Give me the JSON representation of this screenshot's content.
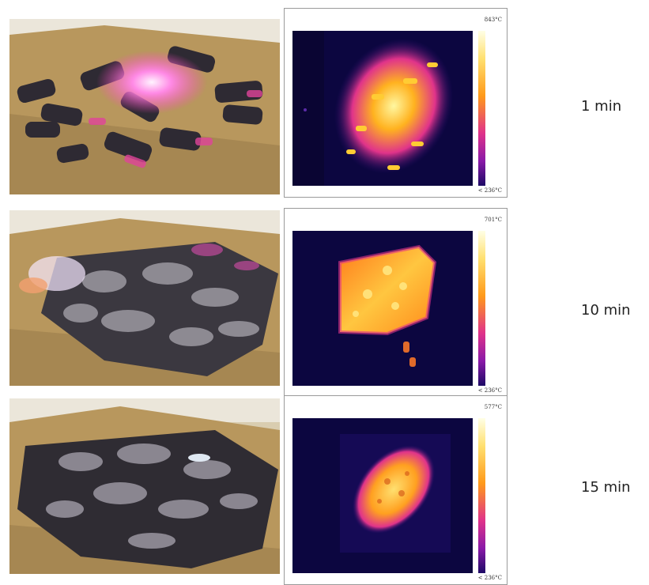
{
  "rows": [
    {
      "time": "1 min",
      "max_temp": "843°C",
      "min_temp": "< 236°C"
    },
    {
      "time": "10 min",
      "max_temp": "701°C",
      "min_temp": "< 236°C"
    },
    {
      "time": "15 min",
      "max_temp": "577°C",
      "min_temp": "< 236°C"
    }
  ]
}
